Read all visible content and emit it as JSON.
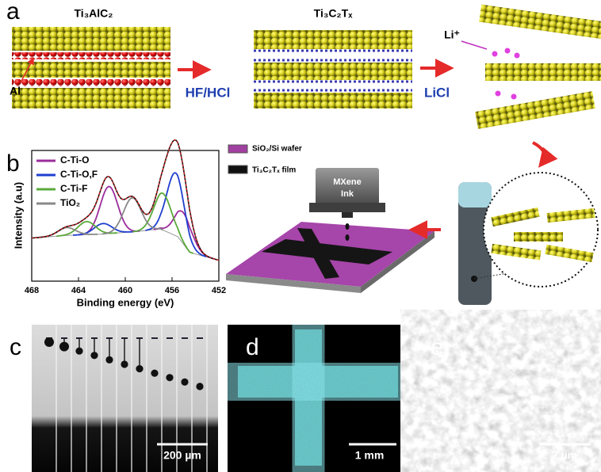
{
  "panel_a": {
    "label": "a",
    "reactant": "Ti₃AlC₂",
    "product": "Ti₃C₂Tₓ",
    "al_label": "Al",
    "etch_label": "HF/HCl",
    "salt_label": "LiCl",
    "ion_label": "Li⁺"
  },
  "panel_b": {
    "label": "b",
    "substrate_label": "SiO₂/Si wafer",
    "film_label": "Ti₃C₂Tₓ film",
    "ink_lines": [
      "MXene",
      "Ink"
    ]
  },
  "chart_data": {
    "type": "line",
    "xlabel": "Binding energy (eV)",
    "ylabel": "Intensity (a.u)",
    "xlim": [
      468,
      452
    ],
    "ylim": [
      0,
      100
    ],
    "xticks": [
      468,
      464,
      460,
      456,
      452
    ],
    "background": {
      "x": [
        468,
        465,
        462,
        459,
        457,
        455.5,
        454.5,
        452
      ],
      "values": [
        33,
        35,
        36,
        38,
        40,
        34,
        22,
        16
      ]
    },
    "series": [
      {
        "name": "C-Ti-O",
        "color": "#9b2c9b",
        "x": [
          455.0,
          461.4
        ],
        "values": [
          24,
          36
        ]
      },
      {
        "name": "C-Ti-O,F",
        "color": "#1f3fcf",
        "x": [
          455.7,
          461.9
        ],
        "values": [
          48,
          8
        ]
      },
      {
        "name": "C-Ti-F",
        "color": "#5aaa3a",
        "x": [
          456.8,
          463.3
        ],
        "values": [
          28,
          10
        ]
      },
      {
        "name": "TiO₂",
        "color": "#888888",
        "x": [
          459.4,
          465.0
        ],
        "values": [
          26,
          6
        ]
      }
    ]
  },
  "panel_c": {
    "label": "c",
    "scale_bar": "200 µm"
  },
  "panel_d": {
    "label": "d",
    "scale_bar": "1 mm"
  },
  "panel_e": {
    "label": "e",
    "scale_bar": "2 µm"
  }
}
